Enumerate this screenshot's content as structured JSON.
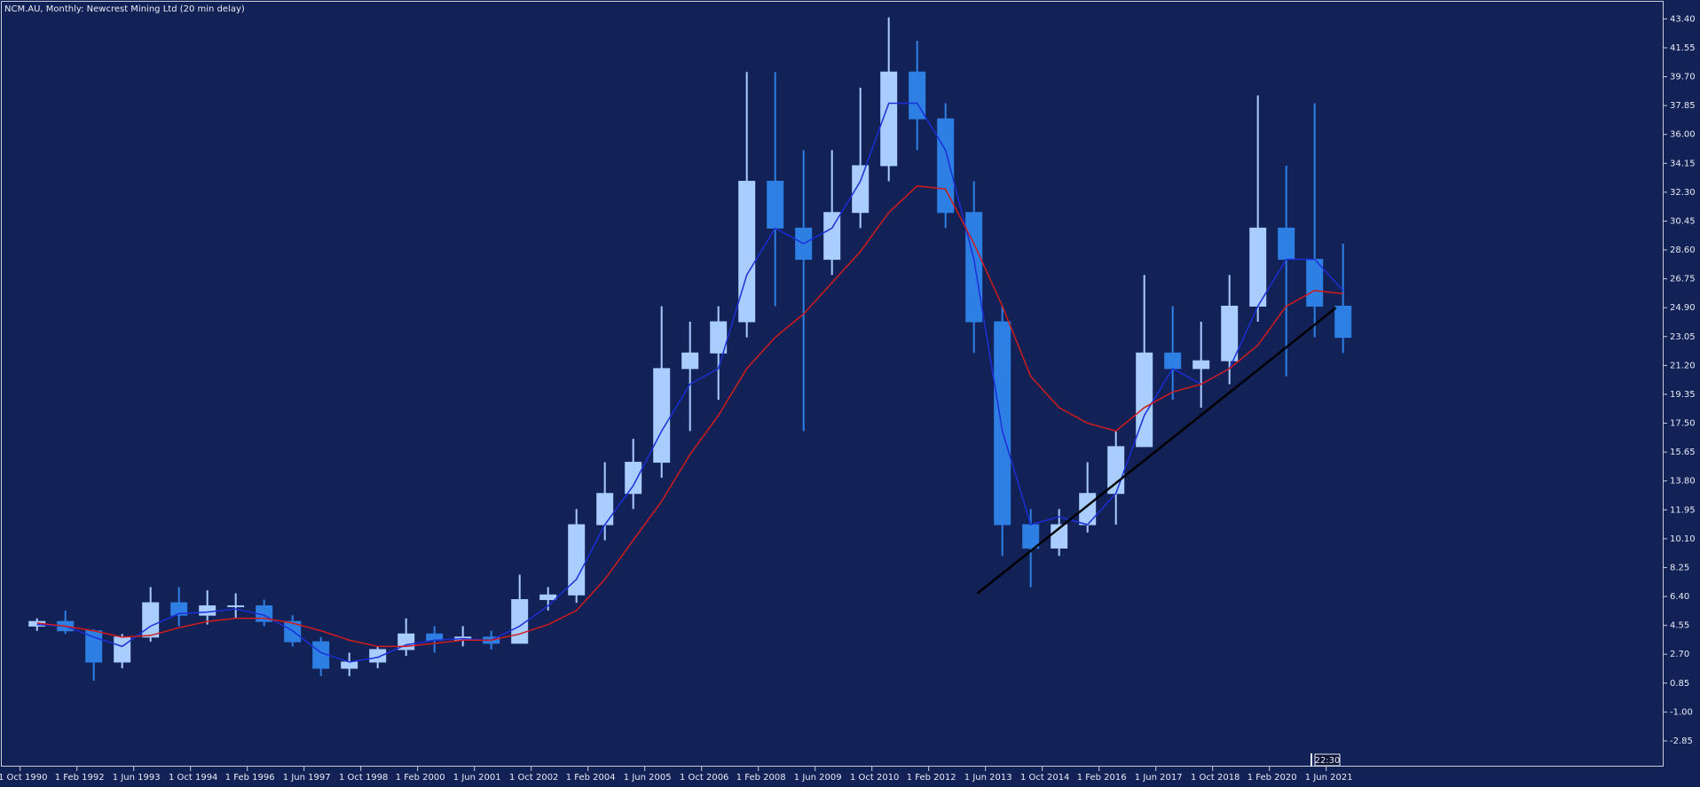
{
  "chart_data": {
    "type": "candlestick",
    "title": "NCM.AU, Monthly:  Newcrest Mining Ltd (20 min delay)",
    "x": [
      "1 Oct 1990",
      "1 Jun 1991",
      "1 Feb 1992",
      "1 Oct 1992",
      "1 Jun 1993",
      "1 Feb 1994",
      "1 Oct 1994",
      "1 Jun 1995",
      "1 Feb 1996",
      "1 Oct 1996",
      "1 Jun 1997",
      "1 Feb 1998",
      "1 Oct 1998",
      "1 Jun 1999",
      "1 Feb 2000",
      "1 Oct 2000",
      "1 Jun 2001",
      "1 Feb 2002",
      "1 Oct 2002",
      "1 Jun 2003",
      "1 Feb 2004",
      "1 Oct 2004",
      "1 Jun 2005",
      "1 Feb 2006",
      "1 Oct 2006",
      "1 Jun 2007",
      "1 Feb 2008",
      "1 Oct 2008",
      "1 Jun 2009",
      "1 Feb 2010",
      "1 Oct 2010",
      "1 Jun 2011",
      "1 Feb 2012",
      "1 Oct 2012",
      "1 Jun 2013",
      "1 Feb 2014",
      "1 Oct 2014",
      "1 Jun 2015",
      "1 Feb 2016",
      "1 Oct 2016",
      "1 Jun 2017",
      "1 Feb 2018",
      "1 Oct 2018",
      "1 Jun 2019",
      "1 Feb 2020",
      "1 Oct 2020",
      "1 Jun 2021"
    ],
    "open": [
      4.5,
      4.8,
      4.2,
      2.2,
      3.8,
      6.0,
      5.2,
      5.8,
      5.8,
      4.8,
      3.5,
      1.8,
      2.2,
      3.0,
      4.0,
      3.6,
      3.8,
      3.4,
      6.2,
      6.5,
      11,
      13,
      15,
      21,
      22,
      24,
      33,
      30,
      28,
      31,
      34,
      40,
      37,
      31,
      24,
      11,
      9.5,
      11,
      13,
      16,
      22,
      21,
      21.5,
      25,
      30,
      28,
      25
    ],
    "high": [
      5.0,
      5.5,
      4.3,
      4.0,
      7.0,
      7.0,
      6.8,
      6.6,
      6.2,
      5.2,
      3.8,
      2.8,
      3.2,
      5.0,
      4.5,
      4.5,
      4.2,
      7.8,
      7.0,
      12,
      15,
      16.5,
      25,
      24,
      25,
      40,
      40,
      35,
      35,
      39,
      43.5,
      42,
      38,
      33,
      25,
      12,
      12,
      15,
      17,
      27,
      25,
      24,
      27,
      38.5,
      34,
      38,
      29
    ],
    "low": [
      4.2,
      4.0,
      1.0,
      1.8,
      3.5,
      4.5,
      4.6,
      5.0,
      4.5,
      3.2,
      1.3,
      1.3,
      1.8,
      2.6,
      2.8,
      3.2,
      3.0,
      3.4,
      5.5,
      6.0,
      10,
      12,
      14,
      17,
      19,
      23,
      25,
      17,
      27,
      30,
      33,
      35,
      30,
      22,
      9,
      7,
      9,
      10.5,
      11,
      16,
      19,
      18.5,
      20,
      24,
      20.5,
      23,
      22
    ],
    "close": [
      4.8,
      4.2,
      2.2,
      3.8,
      6.0,
      5.2,
      5.8,
      5.8,
      4.8,
      3.5,
      1.8,
      2.2,
      3.0,
      4.0,
      3.6,
      3.8,
      3.4,
      6.2,
      6.5,
      11,
      13,
      15,
      21,
      22,
      24,
      33,
      30,
      28,
      31,
      34,
      40,
      37,
      31,
      24,
      11,
      9.5,
      11,
      13,
      16,
      22,
      21,
      21.5,
      25,
      30,
      28,
      25,
      23
    ],
    "up_color": "#a9cdff",
    "down_color": "#2e7fe4",
    "moving_averages": [
      {
        "color": "#1a2fd6",
        "values": [
          4.6,
          4.5,
          3.8,
          3.2,
          4.5,
          5.3,
          5.4,
          5.6,
          5.2,
          4.2,
          2.8,
          2.2,
          2.5,
          3.3,
          3.6,
          3.7,
          3.6,
          4.5,
          5.8,
          7.5,
          11,
          13.5,
          17,
          20,
          21,
          27,
          30,
          29,
          30,
          33,
          38,
          38,
          35,
          28,
          17,
          11,
          11.5,
          11,
          13,
          18,
          21,
          20,
          21,
          25,
          28,
          28,
          26
        ]
      },
      {
        "color": "#d01c1c",
        "values": [
          4.7,
          4.5,
          4.2,
          3.8,
          3.9,
          4.4,
          4.8,
          5.0,
          5.0,
          4.7,
          4.2,
          3.6,
          3.2,
          3.2,
          3.4,
          3.6,
          3.6,
          4.0,
          4.6,
          5.5,
          7.5,
          10,
          12.5,
          15.5,
          18,
          21,
          23,
          24.5,
          26.5,
          28.5,
          31,
          32.7,
          32.5,
          29,
          25,
          20.5,
          18.5,
          17.5,
          17,
          18.5,
          19.5,
          20,
          21,
          22.5,
          25,
          26,
          25.8
        ]
      }
    ],
    "trendline": {
      "color": "#000000",
      "x": [
        "1 Mar 2013",
        "1 Aug 2021"
      ],
      "y": [
        6.6,
        24.9
      ]
    },
    "time_marker": "22:30",
    "ylim": [
      -4.5,
      44.5
    ],
    "yticks": [
      {
        "value": 43.4,
        "label": "43.40"
      },
      {
        "value": 41.55,
        "label": "41.55"
      },
      {
        "value": 39.7,
        "label": "39.70"
      },
      {
        "value": 37.85,
        "label": "37.85"
      },
      {
        "value": 36,
        "label": "36.00"
      },
      {
        "value": 34.15,
        "label": "34.15"
      },
      {
        "value": 32.3,
        "label": "32.30"
      },
      {
        "value": 30.45,
        "label": "30.45"
      },
      {
        "value": 28.6,
        "label": "28.60"
      },
      {
        "value": 26.75,
        "label": "26.75"
      },
      {
        "value": 24.9,
        "label": "24.90"
      },
      {
        "value": 23.05,
        "label": "23.05"
      },
      {
        "value": 21.2,
        "label": "21.20"
      },
      {
        "value": 19.35,
        "label": "19.35"
      },
      {
        "value": 17.5,
        "label": "17.50"
      },
      {
        "value": 15.65,
        "label": "15.65"
      },
      {
        "value": 13.8,
        "label": "13.80"
      },
      {
        "value": 11.95,
        "label": "11.95"
      },
      {
        "value": 10.1,
        "label": "10.10"
      },
      {
        "value": 8.25,
        "label": "8.25"
      },
      {
        "value": 6.4,
        "label": "6.40"
      },
      {
        "value": 4.55,
        "label": "4.55"
      },
      {
        "value": 2.7,
        "label": "2.70"
      },
      {
        "value": 0.85,
        "label": "0.85"
      },
      {
        "value": -1,
        "label": "-1.00"
      },
      {
        "value": -2.85,
        "label": "-2.85"
      }
    ],
    "xticks": [
      "1 Oct 1990",
      "1 Feb 1992",
      "1 Jun 1993",
      "1 Oct 1994",
      "1 Feb 1996",
      "1 Jun 1997",
      "1 Oct 1998",
      "1 Feb 2000",
      "1 Jun 2001",
      "1 Oct 2002",
      "1 Feb 2004",
      "1 Jun 2005",
      "1 Oct 2006",
      "1 Feb 2008",
      "1 Jun 2009",
      "1 Oct 2010",
      "1 Feb 2012",
      "1 Jun 2013",
      "1 Oct 2014",
      "1 Feb 2016",
      "1 Jun 2017",
      "1 Oct 2018",
      "1 Feb 2020",
      "1 Jun 2021"
    ]
  }
}
